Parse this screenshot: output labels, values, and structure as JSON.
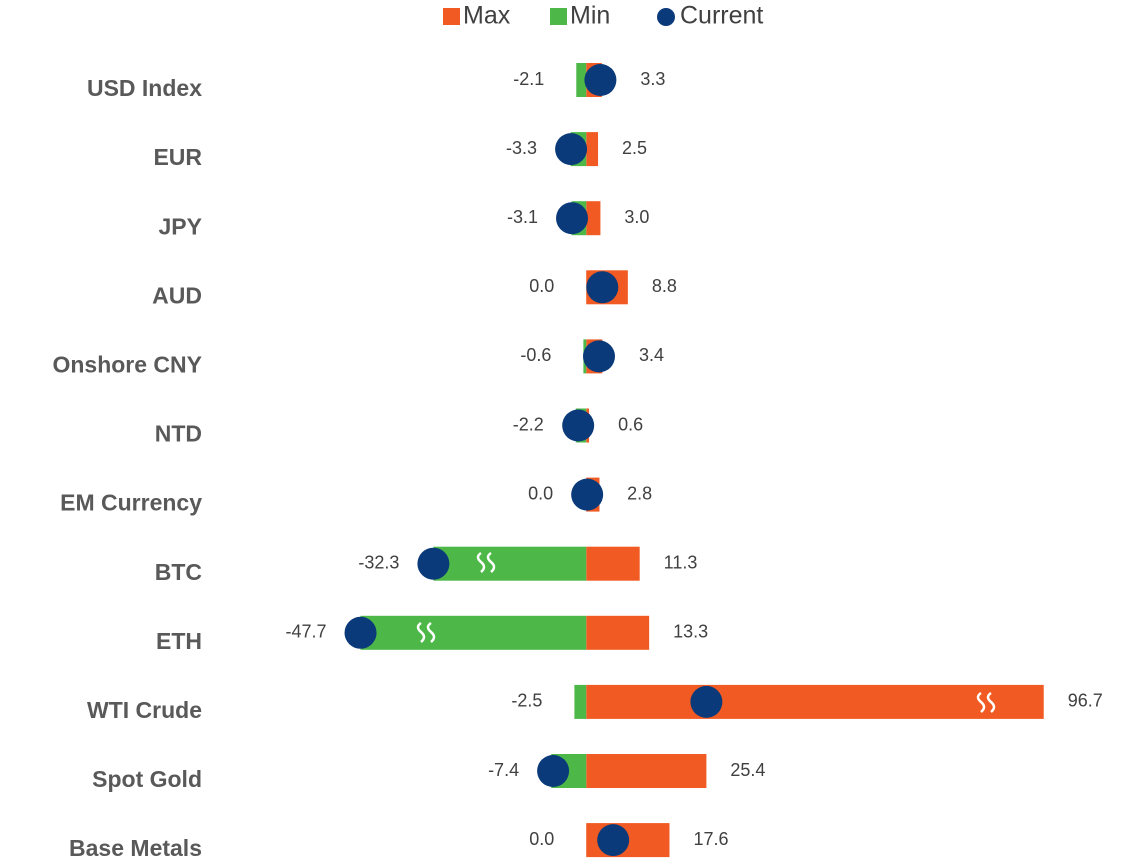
{
  "chart_data": {
    "type": "range_bar",
    "categories": [
      "USD Index",
      "EUR",
      "JPY",
      "AUD",
      "Onshore CNY",
      "NTD",
      "EM Currency",
      "BTC",
      "ETH",
      "WTI Crude",
      "Spot Gold",
      "Base Metals"
    ],
    "series": [
      {
        "name": "Max",
        "color": "#f15a22",
        "values": [
          3.3,
          2.5,
          3.0,
          8.8,
          3.4,
          0.6,
          2.8,
          11.3,
          13.3,
          96.7,
          25.4,
          17.6
        ],
        "value_labels": [
          "3.3",
          "2.5",
          "3.0",
          "8.8",
          "3.4",
          "0.6",
          "2.8",
          "11.3",
          "13.3",
          "96.7",
          "25.4",
          "17.6"
        ]
      },
      {
        "name": "Min",
        "color": "#4db848",
        "values": [
          -2.1,
          -3.3,
          -3.1,
          0.0,
          -0.6,
          -2.2,
          0.0,
          -32.3,
          -47.7,
          -2.5,
          -7.4,
          0.0
        ],
        "value_labels": [
          "-2.1",
          "-3.3",
          "-3.1",
          "0.0",
          "-0.6",
          "-2.2",
          "0.0",
          "-32.3",
          "-47.7",
          "-2.5",
          "-7.4",
          "0.0"
        ]
      },
      {
        "name": "Current",
        "color": "#0b3a7a",
        "values": [
          3.0,
          -3.2,
          -3.0,
          3.4,
          2.7,
          -1.7,
          0.2,
          -32.3,
          -47.7,
          25.4,
          -7.0,
          5.7
        ]
      }
    ],
    "negative_label_color": "#e00000",
    "xlim": [
      -55,
      105
    ]
  }
}
